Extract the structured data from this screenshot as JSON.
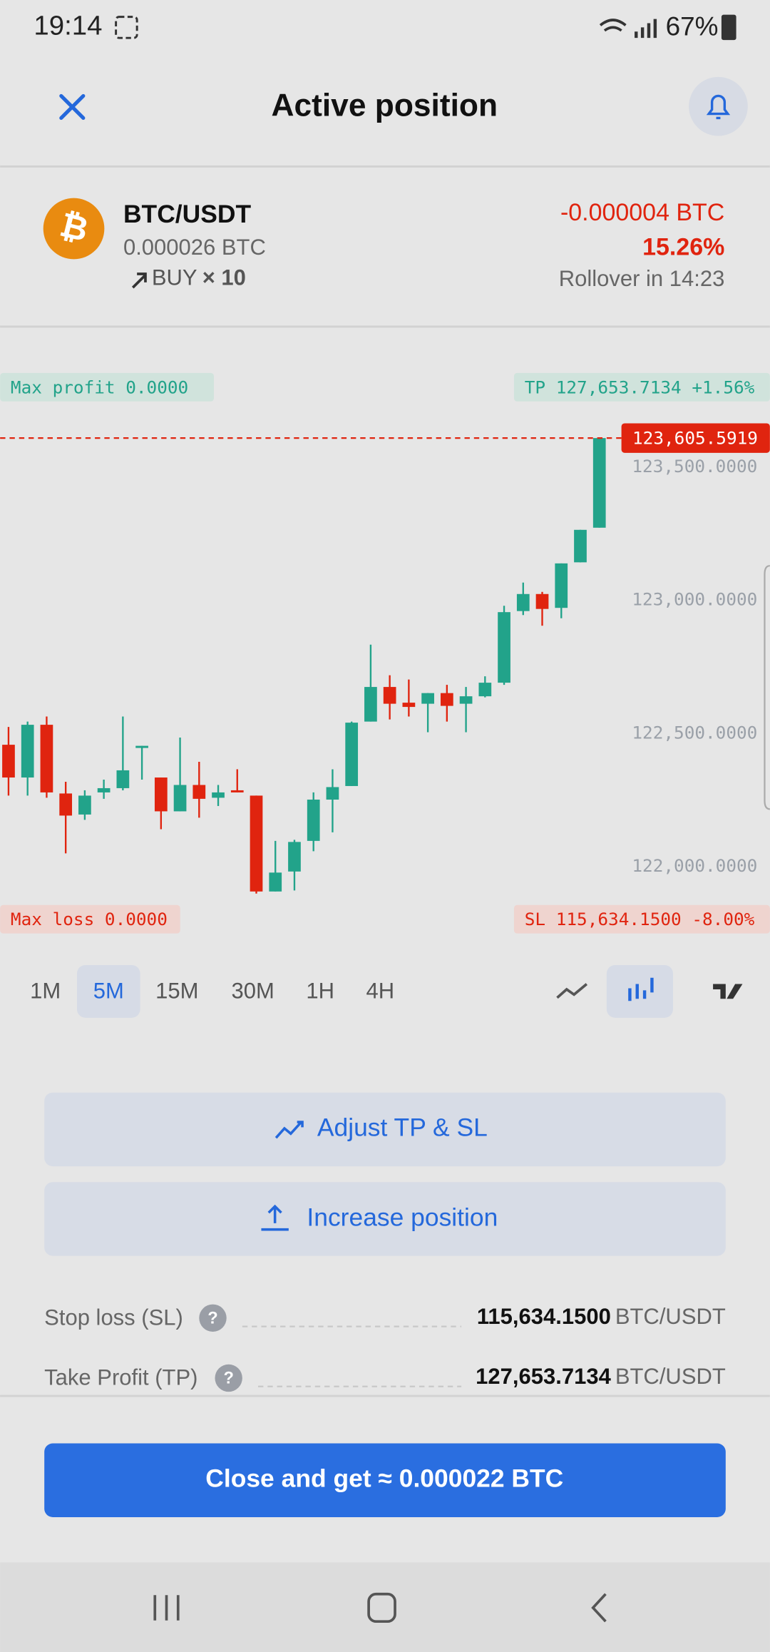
{
  "status_bar": {
    "time": "19:14",
    "battery": "67%"
  },
  "header": {
    "title": "Active position"
  },
  "position": {
    "pair": "BTC/USDT",
    "amount": "0.000026 BTC",
    "side": "BUY",
    "leverage": "× 10",
    "pnl": "-0.000004 BTC",
    "pnl_percent": "15.26%",
    "rollover": "Rollover in 14:23"
  },
  "chart_data": {
    "type": "candlestick",
    "open": [
      122454,
      122331,
      122529,
      122271,
      122192,
      122275,
      122291,
      122442,
      122331,
      122204,
      122303,
      122255,
      122283,
      122263,
      121903,
      121978,
      122093,
      122248,
      122299,
      122541,
      122671,
      122612,
      122608,
      122648,
      122608,
      122636,
      122687,
      122956,
      123020,
      122968,
      123139,
      123269
    ],
    "high": [
      122521,
      122541,
      122560,
      122315,
      122283,
      122323,
      122560,
      122450,
      122331,
      122481,
      122390,
      122303,
      122362,
      122263,
      122093,
      122097,
      122275,
      122362,
      122541,
      122830,
      122715,
      122699,
      122648,
      122679,
      122671,
      122711,
      122976,
      123063,
      123028,
      123135,
      123261,
      123605.5919
    ],
    "low": [
      122263,
      122263,
      122255,
      122046,
      122172,
      122251,
      122283,
      122323,
      122137,
      122204,
      122180,
      122224,
      122275,
      121895,
      121903,
      121907,
      122054,
      122125,
      122299,
      122541,
      122549,
      122560,
      122501,
      122541,
      122501,
      122632,
      122679,
      122941,
      122901,
      122929,
      123139,
      123269
    ],
    "close": [
      122331,
      122529,
      122275,
      122188,
      122263,
      122291,
      122358,
      122450,
      122204,
      122303,
      122251,
      122275,
      122275,
      121903,
      121974,
      122089,
      122248,
      122295,
      122537,
      122671,
      122608,
      122596,
      122648,
      122600,
      122636,
      122687,
      122952,
      123020,
      122964,
      123135,
      123261,
      123605.5919
    ],
    "colors": {
      "up": "#22a38a",
      "down": "#e0240f"
    },
    "ylim": [
      121690,
      123945
    ],
    "yticks": [
      {
        "value": 122000,
        "label": "122,000.0000"
      },
      {
        "value": 122500,
        "label": "122,500.0000"
      },
      {
        "value": 123000,
        "label": "123,000.0000"
      },
      {
        "value": 123500,
        "label": "123,500.0000"
      }
    ],
    "current_price": {
      "value": 123605.5919,
      "label": "123,605.5919"
    },
    "annotations": {
      "max_profit": "Max profit 0.0000",
      "take_profit": "TP 127,653.7134 +1.56%",
      "max_loss": "Max loss 0.0000",
      "stop_loss": "SL 115,634.1500 -8.00%"
    }
  },
  "timeframes": {
    "options": [
      "1M",
      "5M",
      "15M",
      "30M",
      "1H",
      "4H"
    ],
    "selected": 1
  },
  "actions": {
    "adjust": "Adjust TP & SL",
    "increase": "Increase position"
  },
  "details": [
    {
      "label": "Stop loss (SL)",
      "value": "115,634.1500",
      "unit": "BTC/USDT"
    },
    {
      "label": "Take Profit (TP)",
      "value": "127,653.7134",
      "unit": "BTC/USDT"
    }
  ],
  "close_button": "Close and get ≈ 0.000022 BTC"
}
